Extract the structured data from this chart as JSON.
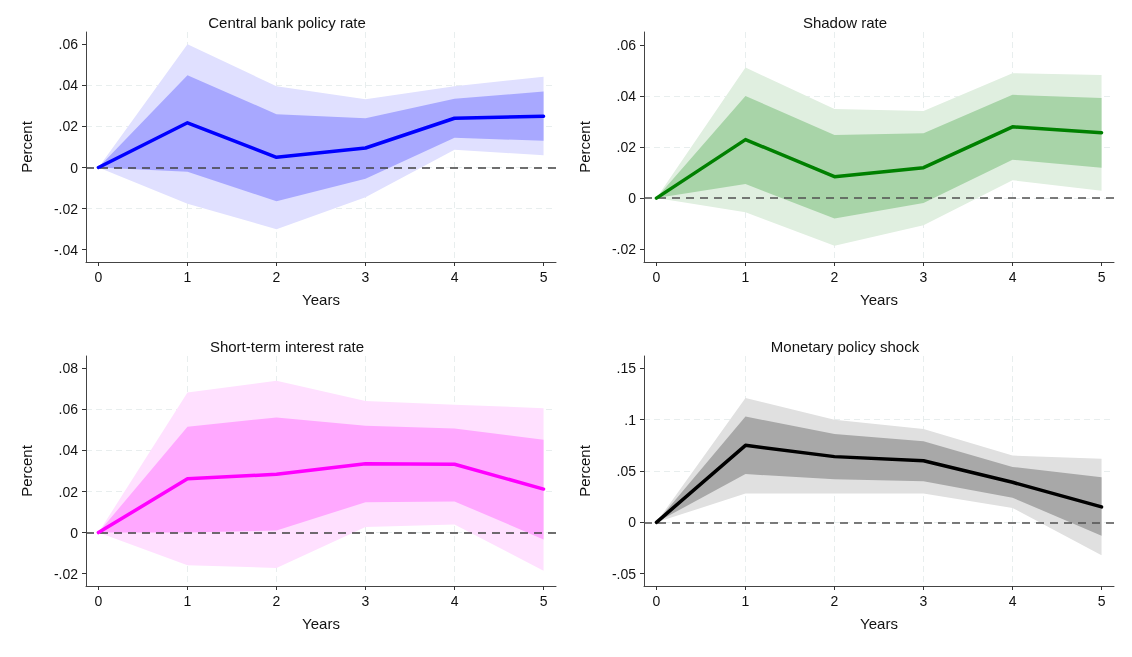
{
  "chart_data": [
    {
      "type": "line",
      "title": "Central bank policy rate",
      "xlabel": "Years",
      "ylabel": "Percent",
      "x": [
        0,
        1,
        2,
        3,
        4,
        5
      ],
      "xlim": [
        -0.14,
        5.14
      ],
      "xticks": [
        0,
        1,
        2,
        3,
        4,
        5
      ],
      "ylim": [
        -0.046,
        0.066
      ],
      "yticks": [
        {
          "value": -0.04,
          "label": "-.04"
        },
        {
          "value": -0.02,
          "label": "-.02"
        },
        {
          "value": 0,
          "label": "0"
        },
        {
          "value": 0.02,
          "label": ".02"
        },
        {
          "value": 0.04,
          "label": ".04"
        },
        {
          "value": 0.06,
          "label": ".06"
        }
      ],
      "grid": true,
      "marker": "none",
      "line_style": "solid",
      "ref_lines": [
        {
          "axis": "y",
          "value": 0,
          "color": "#404040",
          "line_style": "dashed"
        }
      ],
      "series": [
        {
          "color": "#e0e0ff",
          "values": [
            null,
            null,
            null,
            null,
            null,
            null
          ],
          "upper": [
            0,
            0.06,
            0.0396,
            0.0333,
            0.0396,
            0.0442
          ],
          "lower": [
            0,
            -0.0176,
            -0.03,
            -0.0145,
            0.0087,
            0.006
          ]
        },
        {
          "color": "#0000ff",
          "values": [
            0,
            0.0218,
            0.005,
            0.0095,
            0.024,
            0.025
          ],
          "upper": [
            0,
            0.045,
            0.026,
            0.024,
            0.0335,
            0.037
          ],
          "lower": [
            0,
            -0.002,
            -0.0164,
            -0.0055,
            0.0145,
            0.013
          ]
        }
      ]
    },
    {
      "type": "line",
      "title": "Shadow rate",
      "xlabel": "Years",
      "ylabel": "Percent",
      "x": [
        0,
        1,
        2,
        3,
        4,
        5
      ],
      "xlim": [
        -0.14,
        5.14
      ],
      "xticks": [
        0,
        1,
        2,
        3,
        4,
        5
      ],
      "ylim": [
        -0.025,
        0.065
      ],
      "yticks": [
        {
          "value": -0.02,
          "label": "-.02"
        },
        {
          "value": 0,
          "label": "0"
        },
        {
          "value": 0.02,
          "label": ".02"
        },
        {
          "value": 0.04,
          "label": ".04"
        },
        {
          "value": 0.06,
          "label": ".06"
        }
      ],
      "grid": true,
      "marker": "none",
      "line_style": "solid",
      "ref_lines": [
        {
          "axis": "y",
          "value": 0,
          "color": "#505050",
          "line_style": "dashed"
        }
      ],
      "series": [
        {
          "color": "#e0efe0",
          "values": [
            null,
            null,
            null,
            null,
            null,
            null
          ],
          "upper": [
            0,
            0.0511,
            0.0349,
            0.0341,
            0.0489,
            0.0482
          ],
          "lower": [
            0,
            -0.0055,
            -0.0186,
            -0.0106,
            0.007,
            0.0029
          ]
        },
        {
          "color": "#008000",
          "values": [
            0,
            0.0229,
            0.0084,
            0.0119,
            0.0279,
            0.0256
          ],
          "upper": [
            0,
            0.04,
            0.0247,
            0.0254,
            0.0404,
            0.0392
          ],
          "lower": [
            0,
            0.0055,
            -0.008,
            -0.0019,
            0.015,
            0.0119
          ]
        }
      ]
    },
    {
      "type": "line",
      "title": "Short-term interest rate",
      "xlabel": "Years",
      "ylabel": "Percent",
      "x": [
        0,
        1,
        2,
        3,
        4,
        5
      ],
      "xlim": [
        -0.14,
        5.14
      ],
      "xticks": [
        0,
        1,
        2,
        3,
        4,
        5
      ],
      "ylim": [
        -0.026,
        0.086
      ],
      "yticks": [
        {
          "value": -0.02,
          "label": "-.02"
        },
        {
          "value": 0,
          "label": "0"
        },
        {
          "value": 0.02,
          "label": ".02"
        },
        {
          "value": 0.04,
          "label": ".04"
        },
        {
          "value": 0.06,
          "label": ".06"
        },
        {
          "value": 0.08,
          "label": ".08"
        }
      ],
      "grid": true,
      "marker": "none",
      "line_style": "solid",
      "ref_lines": [
        {
          "axis": "y",
          "value": 0,
          "color": "#404040",
          "line_style": "dashed"
        }
      ],
      "series": [
        {
          "color": "#ffe0ff",
          "values": [
            null,
            null,
            null,
            null,
            null,
            null
          ],
          "upper": [
            0,
            0.0682,
            0.074,
            0.0641,
            0.0623,
            0.0606
          ],
          "lower": [
            0,
            -0.0159,
            -0.0172,
            0.0027,
            0.004,
            -0.0186
          ]
        },
        {
          "color": "#ff00ff",
          "values": [
            0,
            0.0262,
            0.0284,
            0.0335,
            0.0333,
            0.0212
          ],
          "upper": [
            0,
            0.0516,
            0.0561,
            0.052,
            0.0507,
            0.0452
          ],
          "lower": [
            0,
            0,
            0.001,
            0.0148,
            0.0152,
            -0.0033
          ]
        }
      ]
    },
    {
      "type": "line",
      "title": "Monetary policy shock",
      "xlabel": "Years",
      "ylabel": "Percent",
      "x": [
        0,
        1,
        2,
        3,
        4,
        5
      ],
      "xlim": [
        -0.14,
        5.14
      ],
      "xticks": [
        0,
        1,
        2,
        3,
        4,
        5
      ],
      "ylim": [
        -0.062,
        0.162
      ],
      "yticks": [
        {
          "value": -0.05,
          "label": "-.05"
        },
        {
          "value": 0,
          "label": "0"
        },
        {
          "value": 0.05,
          "label": ".05"
        },
        {
          "value": 0.1,
          "label": ".1"
        },
        {
          "value": 0.15,
          "label": ".15"
        }
      ],
      "grid": true,
      "marker": "none",
      "line_style": "solid",
      "ref_lines": [
        {
          "axis": "y",
          "value": 0,
          "color": "#505050",
          "line_style": "dashed"
        }
      ],
      "series": [
        {
          "color": "#e0e0e0",
          "values": [
            null,
            null,
            null,
            null,
            null,
            null
          ],
          "upper": [
            0,
            0.121,
            0.1,
            0.091,
            0.065,
            0.062
          ],
          "lower": [
            0,
            0.028,
            0.028,
            0.028,
            0.014,
            -0.032
          ]
        },
        {
          "color": "#000000",
          "values": [
            0,
            0.075,
            0.064,
            0.06,
            0.039,
            0.015
          ],
          "upper": [
            0,
            0.103,
            0.086,
            0.079,
            0.054,
            0.044
          ],
          "lower": [
            0,
            0.047,
            0.042,
            0.04,
            0.024,
            -0.013
          ]
        }
      ]
    }
  ]
}
